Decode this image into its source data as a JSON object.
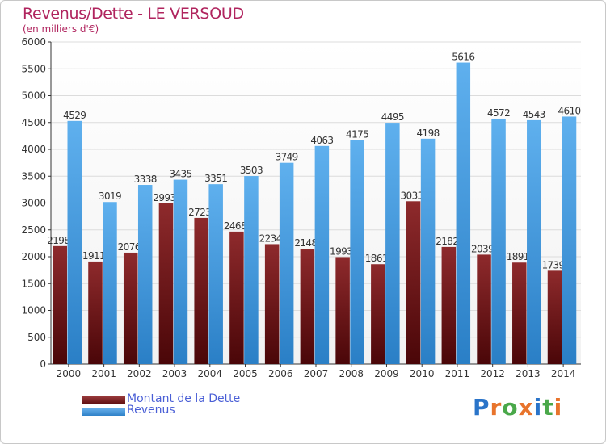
{
  "title": "Revenus/Dette - LE VERSOUD",
  "subtitle": "(en milliers d'€)",
  "logo": {
    "text": "Proxiti",
    "letters": [
      "P",
      "r",
      "o",
      "x",
      "i",
      "t",
      "i"
    ],
    "colors": [
      "#2a74c9",
      "#e8742c",
      "#4aa84a",
      "#e8742c",
      "#2a74c9",
      "#4aa84a",
      "#e8742c"
    ]
  },
  "chart_data": {
    "type": "bar",
    "title": "Revenus/Dette - LE VERSOUD",
    "ylabel": "(en milliers d'€)",
    "xlabel": "",
    "categories": [
      "2000",
      "2001",
      "2002",
      "2003",
      "2004",
      "2005",
      "2006",
      "2007",
      "2008",
      "2009",
      "2010",
      "2011",
      "2012",
      "2013",
      "2014"
    ],
    "ylim": [
      0,
      6000
    ],
    "yticks": [
      0,
      500,
      1000,
      1500,
      2000,
      2500,
      3000,
      3500,
      4000,
      4500,
      5000,
      5500,
      6000
    ],
    "grid": true,
    "legend_placement": "bottom-left",
    "series": [
      {
        "name": "Montant de la Dette",
        "color": "#7a1c1e",
        "values": [
          2198,
          1911,
          2076,
          2993,
          2723,
          2468,
          2234,
          2148,
          1993,
          1861,
          3033,
          2182,
          2039,
          1891,
          1739
        ],
        "labels": [
          "2198",
          "1911",
          "2076",
          "2993",
          "2723",
          "2468",
          "2234",
          "2148",
          "1993",
          "1861",
          "3033",
          "2182",
          "2039",
          "1891",
          "1739"
        ]
      },
      {
        "name": "Revenus",
        "color": "#3d95dc",
        "values": [
          4529,
          3019,
          3338,
          3435,
          3351,
          3503,
          3749,
          4063,
          4175,
          4495,
          4198,
          5616,
          4572,
          4543,
          4610
        ],
        "labels": [
          "4529",
          "3019",
          "3338",
          "3435",
          "3351",
          "3503",
          "3749",
          "4063",
          "4175",
          "4495",
          "4198",
          "5616",
          "4572",
          "4543",
          "4610"
        ]
      }
    ]
  }
}
